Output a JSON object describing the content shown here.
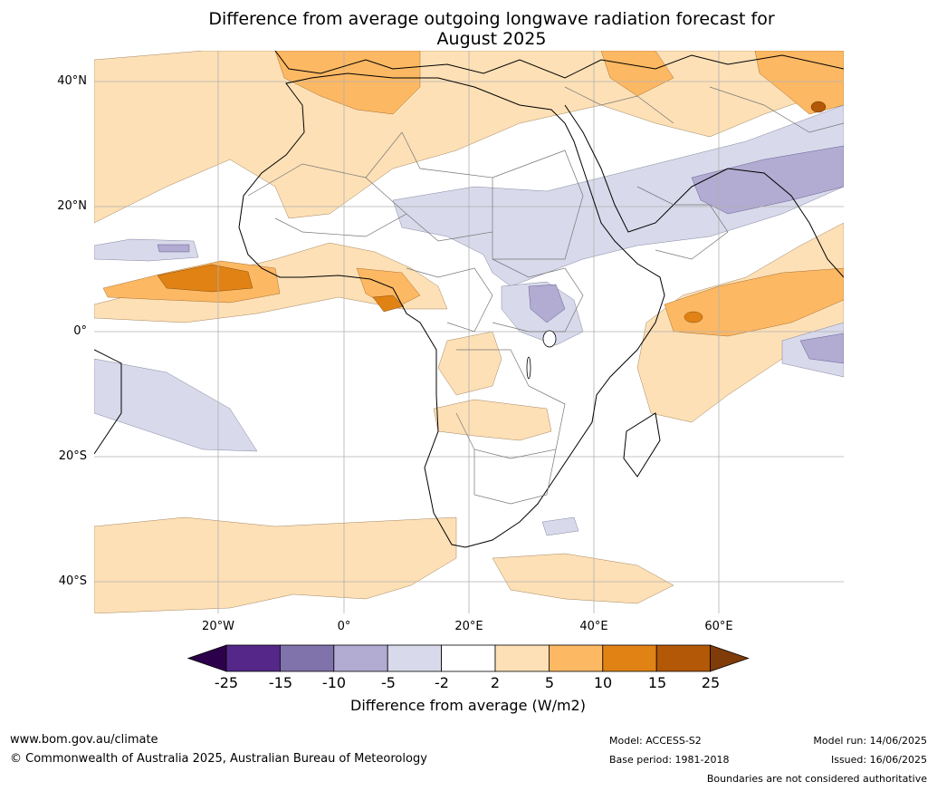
{
  "title": {
    "line1": "Difference from average outgoing longwave radiation forecast for",
    "line2": "August 2025"
  },
  "lat_labels": [
    "40°N",
    "20°N",
    "0°",
    "20°S",
    "40°S"
  ],
  "lon_labels": [
    "20°W",
    "0°",
    "20°E",
    "40°E",
    "60°E"
  ],
  "colorbar": {
    "ticks": [
      "-25",
      "-15",
      "-10",
      "-5",
      "-2",
      "2",
      "5",
      "10",
      "15",
      "25"
    ],
    "label": "Difference from average (W/m2)",
    "colors": {
      "lt_25": "#2d004b",
      "m25_m15": "#542788",
      "m15_m10": "#8073ac",
      "m10_m5": "#b2abd2",
      "m5_m2": "#d8daeb",
      "m2_2": "#ffffff",
      "p2_5": "#fee0b6",
      "p5_10": "#fdb863",
      "p10_15": "#e08214",
      "p15_25": "#b35806",
      "gt_25": "#7f3b08"
    }
  },
  "footer": {
    "website": "www.bom.gov.au/climate",
    "copyright": "© Commonwealth of Australia 2025, Australian Bureau of Meteorology",
    "model": "Model: ACCESS-S2",
    "base_period": "Base period: 1981-2018",
    "model_run": "Model run: 14/06/2025",
    "issued": "Issued: 16/06/2025",
    "disclaimer": "Boundaries are not considered authoritative"
  }
}
